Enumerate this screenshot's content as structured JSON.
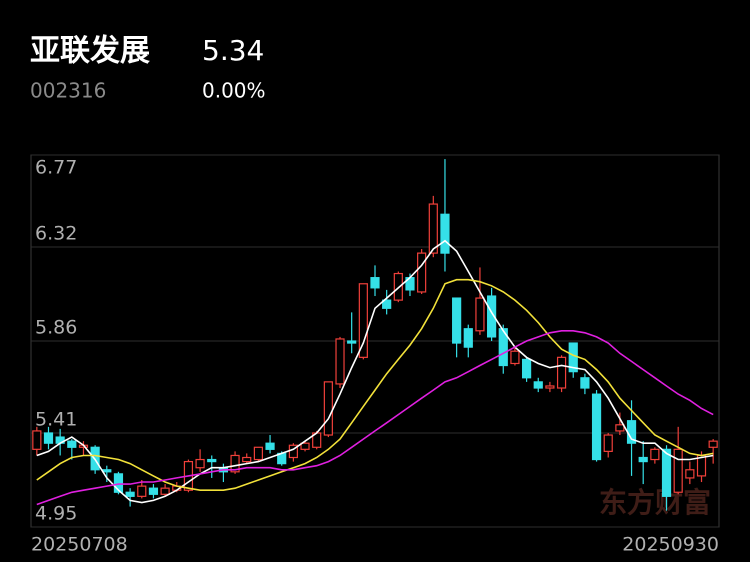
{
  "header": {
    "name": "亚联发展",
    "price": "5.34",
    "code": "002316",
    "change": "0.00%"
  },
  "chart_data": {
    "type": "candlestick",
    "ylim": [
      4.95,
      6.77
    ],
    "yticks": [
      4.95,
      5.41,
      5.86,
      6.32,
      6.77
    ],
    "grid": true,
    "x_labels": [
      "20250708",
      "20250930"
    ],
    "watermark": "东方财富",
    "up_color": "#f0403a",
    "down_color": "#35e0e8",
    "candles": {
      "open": [
        5.33,
        5.41,
        5.39,
        5.37,
        5.34,
        5.34,
        5.23,
        5.21,
        5.12,
        5.1,
        5.14,
        5.11,
        5.13,
        5.13,
        5.24,
        5.28,
        5.24,
        5.22,
        5.27,
        5.28,
        5.36,
        5.31,
        5.29,
        5.33,
        5.34,
        5.4,
        5.65,
        5.86,
        5.78,
        6.17,
        6.06,
        6.06,
        6.17,
        6.1,
        6.29,
        6.48,
        6.07,
        5.92,
        5.91,
        6.08,
        5.92,
        5.75,
        5.77,
        5.66,
        5.63,
        5.63,
        5.85,
        5.68,
        5.6,
        5.32,
        5.42,
        5.47,
        5.29,
        5.28,
        5.33,
        5.12,
        5.19,
        5.2,
        5.34
      ],
      "close": [
        5.42,
        5.36,
        5.36,
        5.34,
        5.35,
        5.23,
        5.22,
        5.12,
        5.1,
        5.15,
        5.11,
        5.14,
        5.15,
        5.27,
        5.28,
        5.27,
        5.22,
        5.3,
        5.29,
        5.34,
        5.33,
        5.26,
        5.35,
        5.36,
        5.41,
        5.66,
        5.87,
        5.85,
        6.14,
        6.12,
        6.02,
        6.19,
        6.11,
        6.29,
        6.53,
        6.29,
        5.85,
        5.83,
        6.07,
        5.88,
        5.74,
        5.81,
        5.68,
        5.63,
        5.64,
        5.78,
        5.71,
        5.63,
        5.28,
        5.4,
        5.45,
        5.36,
        5.27,
        5.33,
        5.1,
        5.33,
        5.23,
        5.3,
        5.37
      ],
      "low": [
        5.3,
        5.33,
        5.3,
        5.28,
        5.3,
        5.21,
        5.17,
        5.11,
        5.05,
        5.09,
        5.09,
        5.1,
        5.12,
        5.12,
        5.22,
        5.19,
        5.17,
        5.21,
        5.26,
        5.27,
        5.31,
        5.25,
        5.27,
        5.32,
        5.33,
        5.39,
        5.63,
        5.8,
        5.77,
        6.08,
        5.99,
        6.05,
        6.08,
        6.09,
        6.27,
        6.2,
        5.78,
        5.78,
        5.89,
        5.86,
        5.7,
        5.74,
        5.66,
        5.61,
        5.61,
        5.61,
        5.68,
        5.6,
        5.27,
        5.29,
        5.4,
        5.2,
        5.16,
        5.26,
        5.03,
        5.11,
        5.16,
        5.17,
        5.26
      ],
      "high": [
        5.44,
        5.44,
        5.43,
        5.38,
        5.37,
        5.35,
        5.25,
        5.22,
        5.14,
        5.18,
        5.16,
        5.16,
        5.17,
        5.28,
        5.33,
        5.3,
        5.26,
        5.32,
        5.31,
        5.34,
        5.4,
        5.32,
        5.36,
        5.37,
        5.42,
        5.66,
        5.88,
        6.0,
        6.14,
        6.23,
        6.11,
        6.2,
        6.19,
        6.31,
        6.57,
        6.75,
        6.07,
        5.94,
        6.22,
        6.12,
        5.94,
        5.83,
        5.78,
        5.68,
        5.66,
        5.79,
        5.85,
        5.7,
        5.62,
        5.41,
        5.51,
        5.57,
        5.37,
        5.34,
        5.35,
        5.44,
        5.27,
        5.32,
        5.38
      ]
    },
    "series": [
      {
        "color": "#ffffff",
        "values": [
          5.3,
          5.32,
          5.36,
          5.39,
          5.35,
          5.28,
          5.19,
          5.13,
          5.08,
          5.07,
          5.08,
          5.1,
          5.13,
          5.17,
          5.21,
          5.24,
          5.24,
          5.25,
          5.26,
          5.27,
          5.29,
          5.31,
          5.33,
          5.37,
          5.41,
          5.48,
          5.6,
          5.73,
          5.85,
          6.02,
          6.07,
          6.12,
          6.17,
          6.23,
          6.31,
          6.35,
          6.3,
          6.2,
          6.1,
          6.0,
          5.91,
          5.83,
          5.78,
          5.75,
          5.73,
          5.74,
          5.73,
          5.72,
          5.66,
          5.58,
          5.48,
          5.38,
          5.36,
          5.36,
          5.31,
          5.28,
          5.28,
          5.29,
          5.3
        ]
      },
      {
        "color": "#f2e13a",
        "values": [
          5.18,
          5.22,
          5.26,
          5.29,
          5.3,
          5.3,
          5.29,
          5.28,
          5.26,
          5.23,
          5.2,
          5.17,
          5.15,
          5.14,
          5.13,
          5.13,
          5.13,
          5.14,
          5.16,
          5.18,
          5.2,
          5.22,
          5.24,
          5.26,
          5.29,
          5.33,
          5.38,
          5.46,
          5.54,
          5.62,
          5.7,
          5.77,
          5.84,
          5.92,
          6.02,
          6.14,
          6.16,
          6.16,
          6.15,
          6.13,
          6.1,
          6.06,
          6.01,
          5.95,
          5.88,
          5.82,
          5.79,
          5.77,
          5.72,
          5.66,
          5.58,
          5.52,
          5.46,
          5.4,
          5.37,
          5.34,
          5.31,
          5.3,
          5.31
        ]
      },
      {
        "color": "#e020e0",
        "values": [
          5.06,
          5.08,
          5.1,
          5.12,
          5.13,
          5.14,
          5.15,
          5.16,
          5.16,
          5.17,
          5.17,
          5.18,
          5.19,
          5.2,
          5.21,
          5.22,
          5.23,
          5.23,
          5.24,
          5.24,
          5.24,
          5.23,
          5.23,
          5.24,
          5.25,
          5.27,
          5.3,
          5.34,
          5.38,
          5.42,
          5.46,
          5.5,
          5.54,
          5.58,
          5.62,
          5.66,
          5.68,
          5.71,
          5.74,
          5.77,
          5.8,
          5.83,
          5.86,
          5.88,
          5.9,
          5.91,
          5.91,
          5.9,
          5.88,
          5.85,
          5.8,
          5.76,
          5.72,
          5.68,
          5.64,
          5.6,
          5.57,
          5.53,
          5.5
        ]
      }
    ]
  }
}
